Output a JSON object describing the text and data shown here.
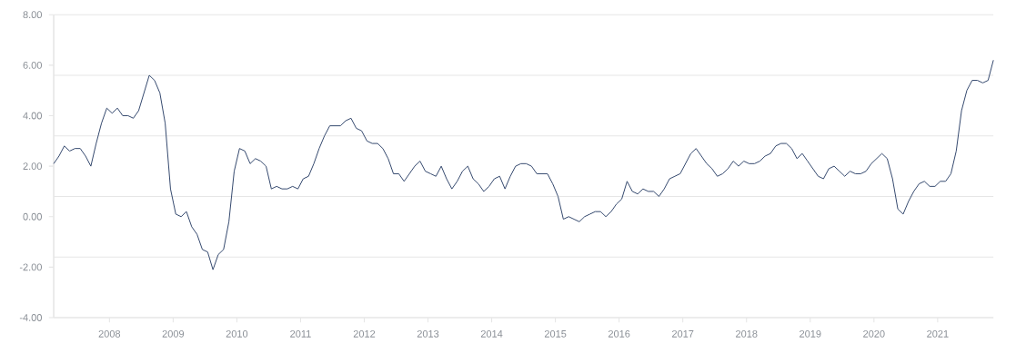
{
  "chart_data": {
    "type": "line",
    "x": [
      "2007-02",
      "2007-03",
      "2007-04",
      "2007-05",
      "2007-06",
      "2007-07",
      "2007-08",
      "2007-09",
      "2007-10",
      "2007-11",
      "2007-12",
      "2008-01",
      "2008-02",
      "2008-03",
      "2008-04",
      "2008-05",
      "2008-06",
      "2008-07",
      "2008-08",
      "2008-09",
      "2008-10",
      "2008-11",
      "2008-12",
      "2009-01",
      "2009-02",
      "2009-03",
      "2009-04",
      "2009-05",
      "2009-06",
      "2009-07",
      "2009-08",
      "2009-09",
      "2009-10",
      "2009-11",
      "2009-12",
      "2010-01",
      "2010-02",
      "2010-03",
      "2010-04",
      "2010-05",
      "2010-06",
      "2010-07",
      "2010-08",
      "2010-09",
      "2010-10",
      "2010-11",
      "2010-12",
      "2011-01",
      "2011-02",
      "2011-03",
      "2011-04",
      "2011-05",
      "2011-06",
      "2011-07",
      "2011-08",
      "2011-09",
      "2011-10",
      "2011-11",
      "2011-12",
      "2012-01",
      "2012-02",
      "2012-03",
      "2012-04",
      "2012-05",
      "2012-06",
      "2012-07",
      "2012-08",
      "2012-09",
      "2012-10",
      "2012-11",
      "2012-12",
      "2013-01",
      "2013-02",
      "2013-03",
      "2013-04",
      "2013-05",
      "2013-06",
      "2013-07",
      "2013-08",
      "2013-09",
      "2013-10",
      "2013-11",
      "2013-12",
      "2014-01",
      "2014-02",
      "2014-03",
      "2014-04",
      "2014-05",
      "2014-06",
      "2014-07",
      "2014-08",
      "2014-09",
      "2014-10",
      "2014-11",
      "2014-12",
      "2015-01",
      "2015-02",
      "2015-03",
      "2015-04",
      "2015-05",
      "2015-06",
      "2015-07",
      "2015-08",
      "2015-09",
      "2015-10",
      "2015-11",
      "2015-12",
      "2016-01",
      "2016-02",
      "2016-03",
      "2016-04",
      "2016-05",
      "2016-06",
      "2016-07",
      "2016-08",
      "2016-09",
      "2016-10",
      "2016-11",
      "2016-12",
      "2017-01",
      "2017-02",
      "2017-03",
      "2017-04",
      "2017-05",
      "2017-06",
      "2017-07",
      "2017-08",
      "2017-09",
      "2017-10",
      "2017-11",
      "2017-12",
      "2018-01",
      "2018-02",
      "2018-03",
      "2018-04",
      "2018-05",
      "2018-06",
      "2018-07",
      "2018-08",
      "2018-09",
      "2018-10",
      "2018-11",
      "2018-12",
      "2019-01",
      "2019-02",
      "2019-03",
      "2019-04",
      "2019-05",
      "2019-06",
      "2019-07",
      "2019-08",
      "2019-09",
      "2019-10",
      "2019-11",
      "2019-12",
      "2020-01",
      "2020-02",
      "2020-03",
      "2020-04",
      "2020-05",
      "2020-06",
      "2020-07",
      "2020-08",
      "2020-09",
      "2020-10",
      "2020-11",
      "2020-12",
      "2021-01",
      "2021-02",
      "2021-03",
      "2021-04",
      "2021-05",
      "2021-06",
      "2021-07",
      "2021-08",
      "2021-09",
      "2021-10",
      "2021-11"
    ],
    "series": [
      {
        "color": "#34496e",
        "values": [
          2.1,
          2.4,
          2.8,
          2.6,
          2.7,
          2.7,
          2.4,
          2.0,
          2.9,
          3.7,
          4.3,
          4.1,
          4.3,
          4.0,
          4.0,
          3.9,
          4.2,
          4.9,
          5.6,
          5.4,
          4.9,
          3.7,
          1.1,
          0.1,
          0.0,
          0.2,
          -0.4,
          -0.7,
          -1.3,
          -1.4,
          -2.1,
          -1.5,
          -1.3,
          -0.2,
          1.8,
          2.7,
          2.6,
          2.1,
          2.3,
          2.2,
          2.0,
          1.1,
          1.2,
          1.1,
          1.1,
          1.2,
          1.1,
          1.5,
          1.6,
          2.1,
          2.7,
          3.2,
          3.6,
          3.6,
          3.6,
          3.8,
          3.9,
          3.5,
          3.4,
          3.0,
          2.9,
          2.9,
          2.7,
          2.3,
          1.7,
          1.7,
          1.4,
          1.7,
          2.0,
          2.2,
          1.8,
          1.7,
          1.6,
          2.0,
          1.5,
          1.1,
          1.4,
          1.8,
          2.0,
          1.5,
          1.3,
          1.0,
          1.2,
          1.5,
          1.6,
          1.1,
          1.6,
          2.0,
          2.1,
          2.1,
          2.0,
          1.7,
          1.7,
          1.7,
          1.3,
          0.8,
          -0.1,
          0.0,
          -0.1,
          -0.2,
          0.0,
          0.1,
          0.2,
          0.2,
          0.0,
          0.2,
          0.5,
          0.7,
          1.4,
          1.0,
          0.9,
          1.1,
          1.0,
          1.0,
          0.8,
          1.1,
          1.5,
          1.6,
          1.7,
          2.1,
          2.5,
          2.7,
          2.4,
          2.1,
          1.9,
          1.6,
          1.7,
          1.9,
          2.2,
          2.0,
          2.2,
          2.1,
          2.1,
          2.2,
          2.4,
          2.5,
          2.8,
          2.9,
          2.9,
          2.7,
          2.3,
          2.5,
          2.2,
          1.9,
          1.6,
          1.5,
          1.9,
          2.0,
          1.8,
          1.6,
          1.8,
          1.7,
          1.7,
          1.8,
          2.1,
          2.3,
          2.5,
          2.3,
          1.5,
          0.3,
          0.1,
          0.6,
          1.0,
          1.3,
          1.4,
          1.2,
          1.2,
          1.4,
          1.4,
          1.7,
          2.6,
          4.2,
          5.0,
          5.4,
          5.4,
          5.3,
          5.4,
          6.2
        ]
      }
    ],
    "xlim": [
      "2007-02",
      "2021-11"
    ],
    "xticks": [
      "2008",
      "2009",
      "2010",
      "2011",
      "2012",
      "2013",
      "2014",
      "2015",
      "2016",
      "2017",
      "2018",
      "2019",
      "2020",
      "2021"
    ],
    "ylim": [
      -4,
      8
    ],
    "yticks": [
      {
        "value": -4,
        "label": "-4.00"
      },
      {
        "value": -2,
        "label": "-2.00"
      },
      {
        "value": -1.6,
        "label": null
      },
      {
        "value": 0,
        "label": "0.00"
      },
      {
        "value": 0.8,
        "label": null
      },
      {
        "value": 2,
        "label": "2.00"
      },
      {
        "value": 3.2,
        "label": null
      },
      {
        "value": 4,
        "label": "4.00"
      },
      {
        "value": 5.6,
        "label": null
      },
      {
        "value": 6,
        "label": "6.00"
      },
      {
        "value": 8,
        "label": "8.00"
      }
    ],
    "grid": "y"
  }
}
